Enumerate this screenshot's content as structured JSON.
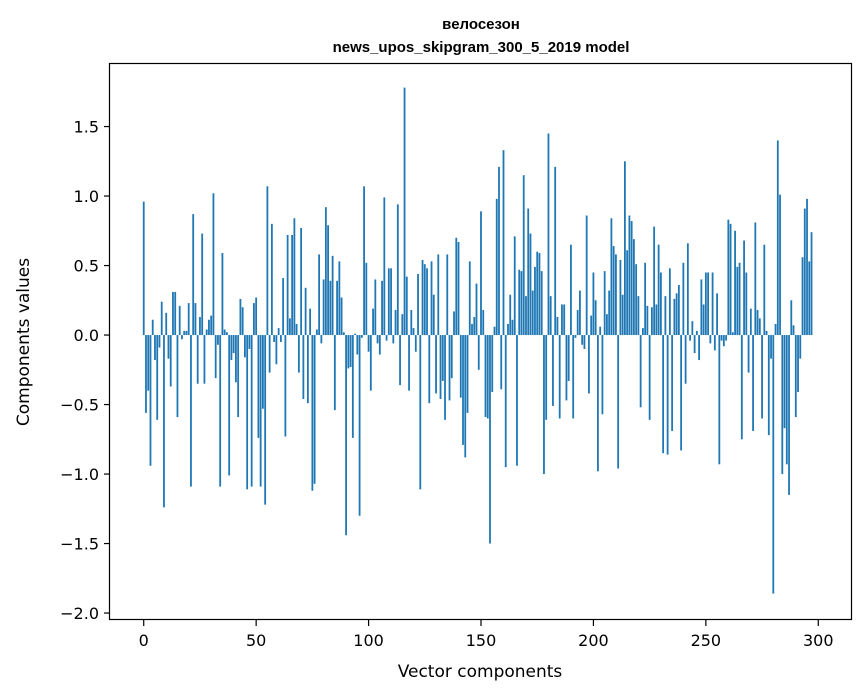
{
  "chart_data": {
    "type": "bar",
    "title": "велосезон",
    "subtitle": "news_upos_skipgram_300_5_2019 model",
    "xlabel": "Vector components",
    "ylabel": "Components values",
    "xlim": [
      -15,
      315
    ],
    "ylim": [
      -2.05,
      1.95
    ],
    "xticks": [
      0,
      50,
      100,
      150,
      200,
      250,
      300
    ],
    "yticks": [
      -2.0,
      -1.5,
      -1.0,
      -0.5,
      0.0,
      0.5,
      1.0,
      1.5
    ],
    "ytick_labels": [
      "−2.0",
      "−1.5",
      "−1.0",
      "−0.5",
      "0.0",
      "0.5",
      "1.0",
      "1.5"
    ],
    "bar_color": "#1f77b4",
    "grid": false,
    "series": [
      {
        "values": [
          0.96,
          -0.56,
          -0.4,
          -0.94,
          0.11,
          -0.18,
          -0.61,
          -0.09,
          0.24,
          -1.24,
          0.16,
          -0.17,
          -0.37,
          0.31,
          0.31,
          -0.59,
          0.21,
          -0.03,
          0.03,
          0.03,
          0.23,
          -1.09,
          0.87,
          0.23,
          -0.35,
          0.13,
          0.73,
          -0.35,
          0.04,
          0.11,
          0.14,
          1.02,
          -0.31,
          -0.07,
          -1.09,
          0.59,
          0.04,
          0.02,
          -1.01,
          -0.18,
          -0.13,
          -0.34,
          -0.59,
          0.26,
          0.2,
          -0.16,
          -1.11,
          -0.1,
          -1.09,
          0.23,
          0.27,
          -0.74,
          -1.09,
          -0.53,
          -1.22,
          1.07,
          -0.27,
          0.8,
          -0.05,
          -0.21,
          0.05,
          -0.05,
          0.41,
          -0.73,
          0.72,
          0.12,
          0.72,
          0.84,
          0.08,
          -0.27,
          0.77,
          -0.46,
          0.34,
          -0.49,
          0.19,
          -1.12,
          -1.07,
          0.04,
          0.58,
          -0.06,
          0.4,
          0.92,
          0.79,
          0.39,
          0.57,
          -0.54,
          0.39,
          0.53,
          0.27,
          0.02,
          -1.44,
          -0.24,
          -0.23,
          -0.74,
          0.01,
          -0.14,
          -1.3,
          -0.02,
          1.07,
          0.52,
          -0.12,
          -0.4,
          0.19,
          0.4,
          -0.06,
          -0.14,
          0.39,
          0.99,
          -0.04,
          0.48,
          0.48,
          -0.06,
          0.18,
          0.94,
          -0.36,
          0.15,
          1.78,
          0.42,
          -0.4,
          0.18,
          0.05,
          -0.12,
          0.44,
          -1.11,
          0.54,
          0.51,
          0.48,
          -0.49,
          0.53,
          0.29,
          -0.42,
          0.58,
          -0.46,
          -0.33,
          -0.61,
          0.58,
          -0.47,
          -0.31,
          0.17,
          0.7,
          0.67,
          -0.45,
          -0.79,
          -0.88,
          -0.56,
          0.53,
          0.08,
          0.13,
          0.37,
          -0.25,
          0.89,
          0.18,
          -0.59,
          -0.6,
          -1.5,
          -0.41,
          0.06,
          0.98,
          1.21,
          -0.39,
          1.33,
          -0.95,
          0.08,
          0.29,
          0.11,
          0.71,
          -0.94,
          0.47,
          0.46,
          1.15,
          0.28,
          0.91,
          0.73,
          0.32,
          0.49,
          0.6,
          0.59,
          0.46,
          -1.0,
          -0.61,
          1.45,
          0.28,
          -0.51,
          1.21,
          0.13,
          -0.6,
          0.22,
          0.22,
          -0.47,
          -0.33,
          0.65,
          -0.6,
          -0.02,
          0.18,
          0.32,
          -0.07,
          -0.1,
          0.86,
          -0.42,
          0.14,
          0.45,
          0.25,
          -0.98,
          0.06,
          -0.57,
          0.46,
          0.15,
          0.32,
          0.84,
          0.64,
          0.58,
          -0.96,
          0.54,
          0.29,
          1.25,
          0.61,
          0.86,
          0.82,
          0.69,
          0.51,
          0.28,
          -0.52,
          0.05,
          0.52,
          0.21,
          -0.61,
          0.2,
          0.78,
          0.22,
          0.65,
          0.45,
          -0.85,
          0.28,
          -0.86,
          0.48,
          -0.69,
          0.26,
          0.3,
          0.36,
          -0.83,
          0.52,
          -0.35,
          0.66,
          -0.04,
          0.1,
          -0.13,
          0.03,
          -0.18,
          0.4,
          0.22,
          0.45,
          0.45,
          -0.06,
          0.45,
          -0.11,
          0.3,
          -0.93,
          -0.04,
          -0.08,
          -0.04,
          0.83,
          0.8,
          0.02,
          0.75,
          0.49,
          0.52,
          -0.75,
          0.68,
          0.45,
          -0.27,
          0.19,
          -0.69,
          0.81,
          0.18,
          0.12,
          -0.6,
          0.65,
          0.03,
          -0.72,
          -0.17,
          -1.86,
          0.08,
          1.4,
          1.01,
          -1.0,
          -0.67,
          -0.93,
          -1.15,
          0.25,
          0.07,
          -0.59,
          -0.41,
          -0.17,
          0.56,
          0.91,
          0.98,
          0.53,
          0.74
        ]
      }
    ]
  }
}
